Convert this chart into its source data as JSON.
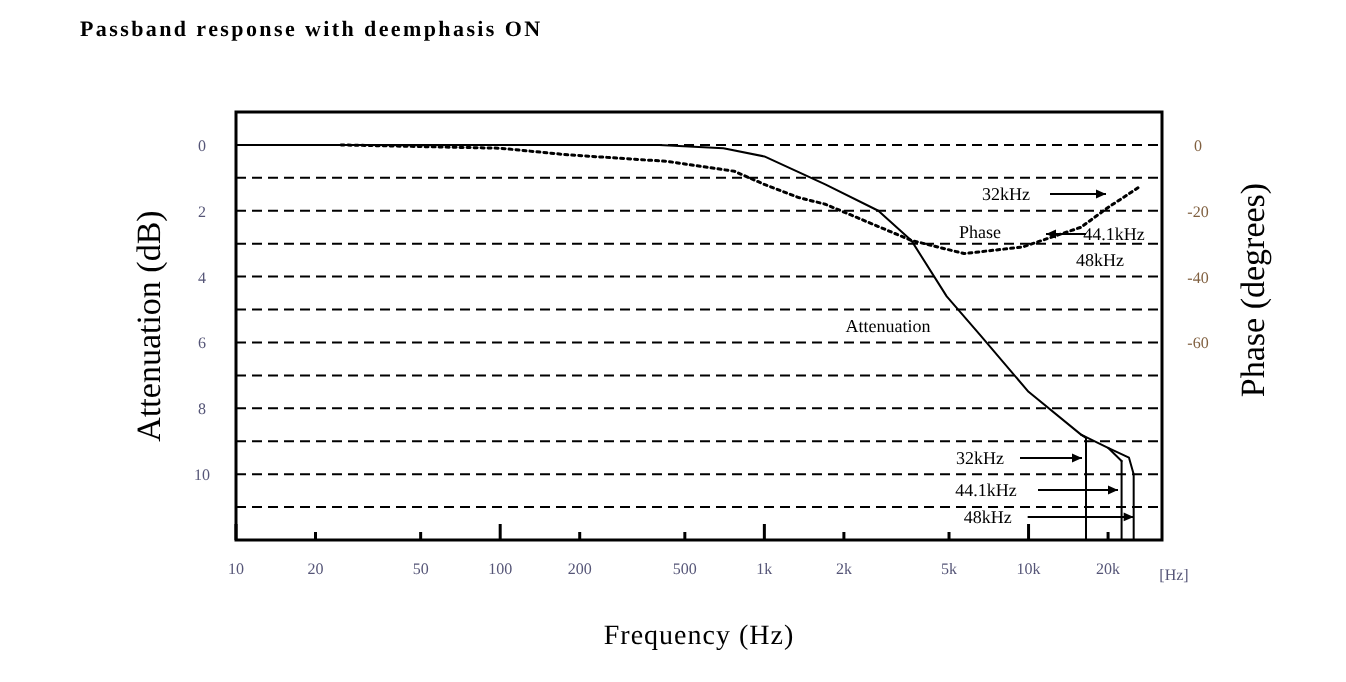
{
  "chart_data": {
    "type": "line",
    "title": "Passband response with deemphasis ON",
    "xlabel": "Frequency (Hz)",
    "ylabel": "Attenuation (dB)",
    "y2label": "Phase (degrees)",
    "log": "x",
    "grid": "y",
    "marker": "none",
    "xlim": [
      10,
      32000
    ],
    "xticks": [
      10,
      20,
      50,
      100,
      200,
      500,
      {
        "value": 1000,
        "label": "1k"
      },
      {
        "value": 2000,
        "label": "2k"
      },
      {
        "value": 5000,
        "label": "5k"
      },
      {
        "value": 10000,
        "label": "10k"
      },
      {
        "value": 20000,
        "label": "20k"
      }
    ],
    "ylim": [
      12,
      -1
    ],
    "yticks": [
      0,
      {
        "value": 1,
        "label": null
      },
      2,
      {
        "value": 3,
        "label": null
      },
      4,
      {
        "value": 5,
        "label": null
      },
      6,
      {
        "value": 7,
        "label": null
      },
      8,
      {
        "value": 9,
        "label": null
      },
      10,
      {
        "value": 11,
        "label": null
      }
    ],
    "y2lim": [
      -120,
      10
    ],
    "y2ticks": [
      0,
      -20,
      -40,
      -60
    ],
    "series": [
      {
        "color": "#000000",
        "line_style": "solid",
        "x": [
          10,
          100,
          400,
          700,
          1000,
          1700,
          2700,
          3600,
          4900,
          6600,
          10000,
          15800,
          20000,
          22500
        ],
        "values": [
          0,
          0,
          0,
          0.1,
          0.35,
          1.2,
          2.0,
          2.9,
          4.6,
          5.8,
          7.5,
          8.8,
          9.2,
          9.6
        ]
      },
      {
        "color": "#000000",
        "line_style": "solid",
        "x": [
          15800,
          16500,
          16500
        ],
        "values": [
          8.8,
          8.9,
          12
        ]
      },
      {
        "color": "#000000",
        "line_style": "solid",
        "x": [
          22500,
          22500
        ],
        "values": [
          9.6,
          12
        ]
      },
      {
        "color": "#000000",
        "line_style": "solid",
        "x": [
          20000,
          24000,
          25000,
          25000
        ],
        "values": [
          9.2,
          9.5,
          10,
          12
        ]
      },
      {
        "color": "#000000",
        "line_style": "dotted",
        "axis": "y2",
        "x": [
          25,
          100,
          180,
          430,
          770,
          1000,
          1350,
          1700,
          3600,
          5700,
          9500,
          15800,
          20000,
          26000
        ],
        "values": [
          0,
          -1,
          -3,
          -5,
          -8,
          -12,
          -16,
          -18,
          -29,
          -33,
          -31,
          -25,
          -19,
          -13
        ]
      }
    ],
    "annotations": [
      "32kHz",
      "44.1kHz",
      "48kHz",
      "Phase",
      "Attenuation",
      "32kHz",
      "44.1kHz",
      {
        "text": "48kHz",
        "x": 25000,
        "y": 11.3
      },
      "[Hz]"
    ]
  }
}
